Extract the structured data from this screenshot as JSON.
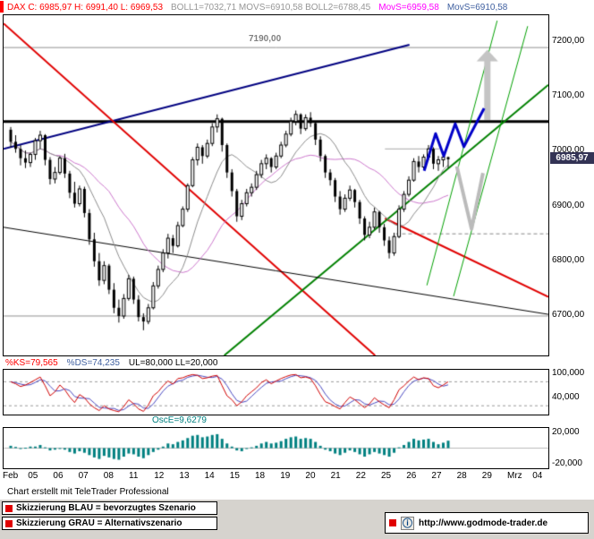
{
  "header": {
    "dax": "DAX C: 6985,97 H: 6991,40 L: 6969,53",
    "boll": "BOLL1=7032,71 MOVS=6910,58 BOLL2=6788,45",
    "movs_pink": "MovS=6959,58",
    "movs_blue": "MovS=6910,58"
  },
  "colors": {
    "accent_red": "#FF0000",
    "gray_text": "#969696",
    "magenta": "#FF00FF",
    "steel_blue": "#4060A0",
    "candle": "#000000",
    "ma_fast": "#8C8C8C",
    "ma_slow": "#CC77CC",
    "stoch_k": "#D00000",
    "stoch_d": "#4848C0",
    "teal": "#008080",
    "badge_bg": "#333355",
    "badge_text": "#FFFFFF",
    "navy_line": "#000080",
    "red_line": "#E00000",
    "green_line": "#008000",
    "gray_sketch": "#C4C4C4",
    "blue_sketch": "#0000C8"
  },
  "chart_data": {
    "type": "candlestick",
    "instrument": "DAX",
    "ohlc": [
      [
        7040,
        7045,
        7008,
        7018
      ],
      [
        7018,
        7030,
        6998,
        7005
      ],
      [
        7005,
        7012,
        6975,
        6988
      ],
      [
        6988,
        7002,
        6970,
        6980
      ],
      [
        6980,
        6998,
        6972,
        6995
      ],
      [
        6995,
        7025,
        6985,
        7020
      ],
      [
        7020,
        7038,
        7005,
        7030
      ],
      [
        7030,
        7032,
        6975,
        6985
      ],
      [
        6985,
        6990,
        6940,
        6950
      ],
      [
        6950,
        6972,
        6942,
        6962
      ],
      [
        6962,
        6992,
        6958,
        6988
      ],
      [
        6988,
        6996,
        6952,
        6960
      ],
      [
        6960,
        6965,
        6915,
        6925
      ],
      [
        6925,
        6945,
        6898,
        6905
      ],
      [
        6905,
        6938,
        6900,
        6932
      ],
      [
        6932,
        6936,
        6880,
        6888
      ],
      [
        6888,
        6895,
        6830,
        6840
      ],
      [
        6840,
        6852,
        6790,
        6800
      ],
      [
        6800,
        6815,
        6755,
        6765
      ],
      [
        6765,
        6800,
        6758,
        6792
      ],
      [
        6792,
        6795,
        6740,
        6748
      ],
      [
        6748,
        6760,
        6705,
        6715
      ],
      [
        6715,
        6730,
        6688,
        6700
      ],
      [
        6700,
        6740,
        6695,
        6732
      ],
      [
        6732,
        6775,
        6728,
        6768
      ],
      [
        6768,
        6772,
        6722,
        6730
      ],
      [
        6730,
        6738,
        6690,
        6698
      ],
      [
        6698,
        6705,
        6674,
        6690
      ],
      [
        6690,
        6722,
        6685,
        6715
      ],
      [
        6715,
        6762,
        6712,
        6755
      ],
      [
        6755,
        6792,
        6750,
        6785
      ],
      [
        6785,
        6822,
        6780,
        6815
      ],
      [
        6815,
        6850,
        6805,
        6842
      ],
      [
        6842,
        6848,
        6815,
        6828
      ],
      [
        6828,
        6872,
        6825,
        6865
      ],
      [
        6865,
        6900,
        6862,
        6895
      ],
      [
        6895,
        6942,
        6890,
        6938
      ],
      [
        6938,
        6990,
        6935,
        6985
      ],
      [
        6985,
        7015,
        6975,
        7008
      ],
      [
        7008,
        7012,
        6978,
        6992
      ],
      [
        6992,
        7022,
        6988,
        7015
      ],
      [
        7015,
        7052,
        7010,
        7045
      ],
      [
        7045,
        7068,
        7035,
        7060
      ],
      [
        7060,
        7062,
        7000,
        7012
      ],
      [
        7012,
        7015,
        6952,
        6962
      ],
      [
        6962,
        6968,
        6918,
        6928
      ],
      [
        6928,
        6932,
        6872,
        6882
      ],
      [
        6882,
        6912,
        6875,
        6905
      ],
      [
        6905,
        6932,
        6900,
        6925
      ],
      [
        6925,
        6942,
        6918,
        6935
      ],
      [
        6935,
        6965,
        6930,
        6958
      ],
      [
        6958,
        6985,
        6952,
        6978
      ],
      [
        6978,
        6995,
        6968,
        6988
      ],
      [
        6988,
        6990,
        6962,
        6972
      ],
      [
        6972,
        6998,
        6968,
        6992
      ],
      [
        6992,
        7018,
        6988,
        7012
      ],
      [
        7012,
        7038,
        7008,
        7032
      ],
      [
        7032,
        7062,
        7028,
        7055
      ],
      [
        7055,
        7075,
        7048,
        7068
      ],
      [
        7068,
        7070,
        7032,
        7042
      ],
      [
        7042,
        7068,
        7038,
        7062
      ],
      [
        7062,
        7072,
        7045,
        7052
      ],
      [
        7052,
        7055,
        7012,
        7022
      ],
      [
        7022,
        7028,
        6982,
        6992
      ],
      [
        6992,
        6995,
        6952,
        6962
      ],
      [
        6962,
        6968,
        6938,
        6948
      ],
      [
        6948,
        6952,
        6908,
        6918
      ],
      [
        6918,
        6928,
        6885,
        6895
      ],
      [
        6895,
        6922,
        6890,
        6915
      ],
      [
        6915,
        6938,
        6910,
        6930
      ],
      [
        6930,
        6932,
        6898,
        6908
      ],
      [
        6908,
        6912,
        6868,
        6878
      ],
      [
        6878,
        6882,
        6838,
        6848
      ],
      [
        6848,
        6872,
        6842,
        6862
      ],
      [
        6862,
        6898,
        6858,
        6890
      ],
      [
        6890,
        6892,
        6852,
        6862
      ],
      [
        6862,
        6868,
        6828,
        6838
      ],
      [
        6838,
        6845,
        6805,
        6815
      ],
      [
        6815,
        6852,
        6810,
        6845
      ],
      [
        6845,
        6902,
        6842,
        6895
      ],
      [
        6895,
        6928,
        6890,
        6922
      ],
      [
        6922,
        6955,
        6918,
        6948
      ],
      [
        6948,
        6988,
        6945,
        6982
      ],
      [
        6982,
        6992,
        6962,
        6972
      ],
      [
        6972,
        6995,
        6968,
        6990
      ],
      [
        6990,
        7012,
        6985,
        7005
      ],
      [
        7005,
        7008,
        6968,
        6978
      ],
      [
        6978,
        6992,
        6965,
        6985
      ],
      [
        6985,
        6995,
        6972,
        6990
      ],
      [
        6990,
        6991,
        6970,
        6986
      ]
    ],
    "price_axis": {
      "range": [
        6628,
        7249
      ],
      "ticks": [
        {
          "label": "7200,00",
          "value": 7200
        },
        {
          "label": "7100,00",
          "value": 7100
        },
        {
          "label": "7000,00",
          "value": 7000
        },
        {
          "label": "6900,00",
          "value": 6900
        },
        {
          "label": "6800,00",
          "value": 6800
        },
        {
          "label": "6700,00",
          "value": 6700
        }
      ],
      "last_price": 6985.97,
      "last_price_label": "6985,97"
    },
    "x_axis": {
      "labels": [
        "Feb",
        "05",
        "06",
        "07",
        "08",
        "11",
        "12",
        "13",
        "14",
        "15",
        "18",
        "19",
        "20",
        "21",
        "22",
        "25",
        "26",
        "27",
        "28",
        "29",
        "Mrz",
        "04"
      ]
    },
    "overlays": {
      "ma_fast_period": 10,
      "ma_slow_period": 21,
      "level_label": {
        "label": "7190,00",
        "value": 7190
      },
      "h_levels": [
        {
          "p": 7190,
          "color": "#909090",
          "w": 1
        },
        {
          "p": 6700,
          "color": "#909090",
          "w": 1
        },
        {
          "p": 6850,
          "x1": 0.72,
          "x2": 1,
          "color": "#888888",
          "w": 1,
          "dash": [
            4,
            3
          ]
        },
        {
          "p": 7005,
          "x1": 0.7,
          "x2": 0.8,
          "color": "#A8A8A8",
          "w": 1
        },
        {
          "p": 7055,
          "color": "#000000",
          "w": 3
        }
      ],
      "lines": [
        {
          "name": "rising-resistance-navy",
          "x1": 0,
          "p1": 7005,
          "x2": 0.745,
          "p2": 7195,
          "color": "#000080",
          "w": 2
        },
        {
          "name": "falling-trendline-red",
          "x1": 0,
          "p1": 7234,
          "x2": 0.682,
          "p2": 6628,
          "color": "#E00000",
          "w": 2
        },
        {
          "name": "falling-support-red",
          "x1": 0.7,
          "p1": 6878,
          "x2": 1,
          "p2": 6735,
          "color": "#E00000",
          "w": 2
        },
        {
          "name": "rising-support-green",
          "x1": 0.405,
          "p1": 6628,
          "x2": 1,
          "p2": 7122,
          "color": "#008000",
          "w": 2
        },
        {
          "name": "channel-left-green",
          "x1": 0.777,
          "p1": 6756,
          "x2": 0.906,
          "p2": 7239,
          "color": "#00A000",
          "w": 1
        },
        {
          "name": "channel-right-green",
          "x1": 0.826,
          "p1": 6736,
          "x2": 0.962,
          "p2": 7229,
          "color": "#00A000",
          "w": 1
        },
        {
          "name": "falling-trendline-black",
          "x1": 0,
          "p1": 6862,
          "x2": 1,
          "p2": 6703,
          "color": "#000000",
          "w": 1
        }
      ],
      "sketches": {
        "blue_zigzag": {
          "color": "#0000C8",
          "w": 3,
          "points": [
            [
              0.772,
              6965
            ],
            [
              0.793,
              7033
            ],
            [
              0.808,
              6992
            ],
            [
              0.829,
              7051
            ],
            [
              0.845,
              7009
            ],
            [
              0.882,
              7079
            ]
          ]
        },
        "gray_v": {
          "color": "#BBBBBB",
          "w": 4,
          "points": [
            [
              0.832,
              6973
            ],
            [
              0.859,
              6859
            ],
            [
              0.88,
              6961
            ]
          ]
        },
        "gray_up_arrow": {
          "color": "#C4C4C4",
          "x": 0.888,
          "p_from": 7058,
          "p_to": 7186
        }
      }
    },
    "indicators": {
      "stochastic": {
        "k_label": "%KS=79,565",
        "d_label": "%DS=74,235",
        "levels_label": "UL=80,000 LL=20,000",
        "ul": 80,
        "ll": 20,
        "range": [
          -2,
          110
        ],
        "axis_ticks": [
          {
            "label": "100,000",
            "value": 100
          },
          {
            "label": "40,000",
            "value": 40
          }
        ],
        "k": [
          80,
          75,
          68,
          72,
          78,
          85,
          92,
          70,
          45,
          55,
          72,
          60,
          42,
          28,
          48,
          40,
          25,
          15,
          8,
          20,
          12,
          8,
          5,
          18,
          35,
          25,
          12,
          6,
          22,
          45,
          55,
          70,
          82,
          74,
          88,
          90,
          95,
          98,
          96,
          88,
          90,
          94,
          96,
          70,
          45,
          35,
          20,
          30,
          45,
          55,
          65,
          78,
          85,
          75,
          82,
          88,
          93,
          97,
          98,
          90,
          92,
          88,
          70,
          48,
          30,
          25,
          18,
          12,
          28,
          42,
          35,
          25,
          15,
          25,
          40,
          30,
          22,
          15,
          35,
          60,
          70,
          82,
          92,
          85,
          90,
          88,
          70,
          65,
          72,
          80
        ]
      },
      "osce": {
        "label": "OscE=9,6279",
        "range": [
          -26000,
          26000
        ],
        "axis_ticks": [
          {
            "label": "20,000",
            "value": 20000
          },
          {
            "label": "-20,000",
            "value": -20000
          }
        ],
        "values": [
          3000,
          1500,
          -1000,
          500,
          2000,
          2000,
          4000,
          1000,
          -3000,
          -2000,
          -1000,
          -2000,
          -5000,
          -7000,
          -4000,
          -6000,
          -9000,
          -12000,
          -14000,
          -10000,
          -12000,
          -14000,
          -15000,
          -11000,
          -7000,
          -8000,
          -11000,
          -13000,
          -9000,
          -5000,
          -2000,
          2000,
          6000,
          5000,
          8000,
          10000,
          13000,
          16000,
          17000,
          14000,
          15000,
          17000,
          18000,
          12000,
          6000,
          2000,
          -3000,
          -4000,
          -1000,
          1000,
          3000,
          6000,
          8000,
          6000,
          7000,
          9000,
          12000,
          14000,
          15000,
          12000,
          13000,
          12000,
          8000,
          3000,
          -2000,
          -4000,
          -7000,
          -9000,
          -6000,
          -3000,
          -5000,
          -8000,
          -11000,
          -8000,
          -5000,
          -7000,
          -9000,
          -11000,
          -6000,
          1000,
          4000,
          8000,
          12000,
          10000,
          11000,
          12000,
          8000,
          5000,
          7000,
          9600
        ]
      }
    }
  },
  "footer": {
    "credit": "Chart erstellt mit TeleTrader Professional",
    "legend_blue": "Skizzierung BLAU = bevorzugtes Szenario",
    "legend_gray": "Skizzierung GRAU = Alternativszenario",
    "info_icon": "ⓘ",
    "site_url": "http://www.godmode-trader.de"
  }
}
